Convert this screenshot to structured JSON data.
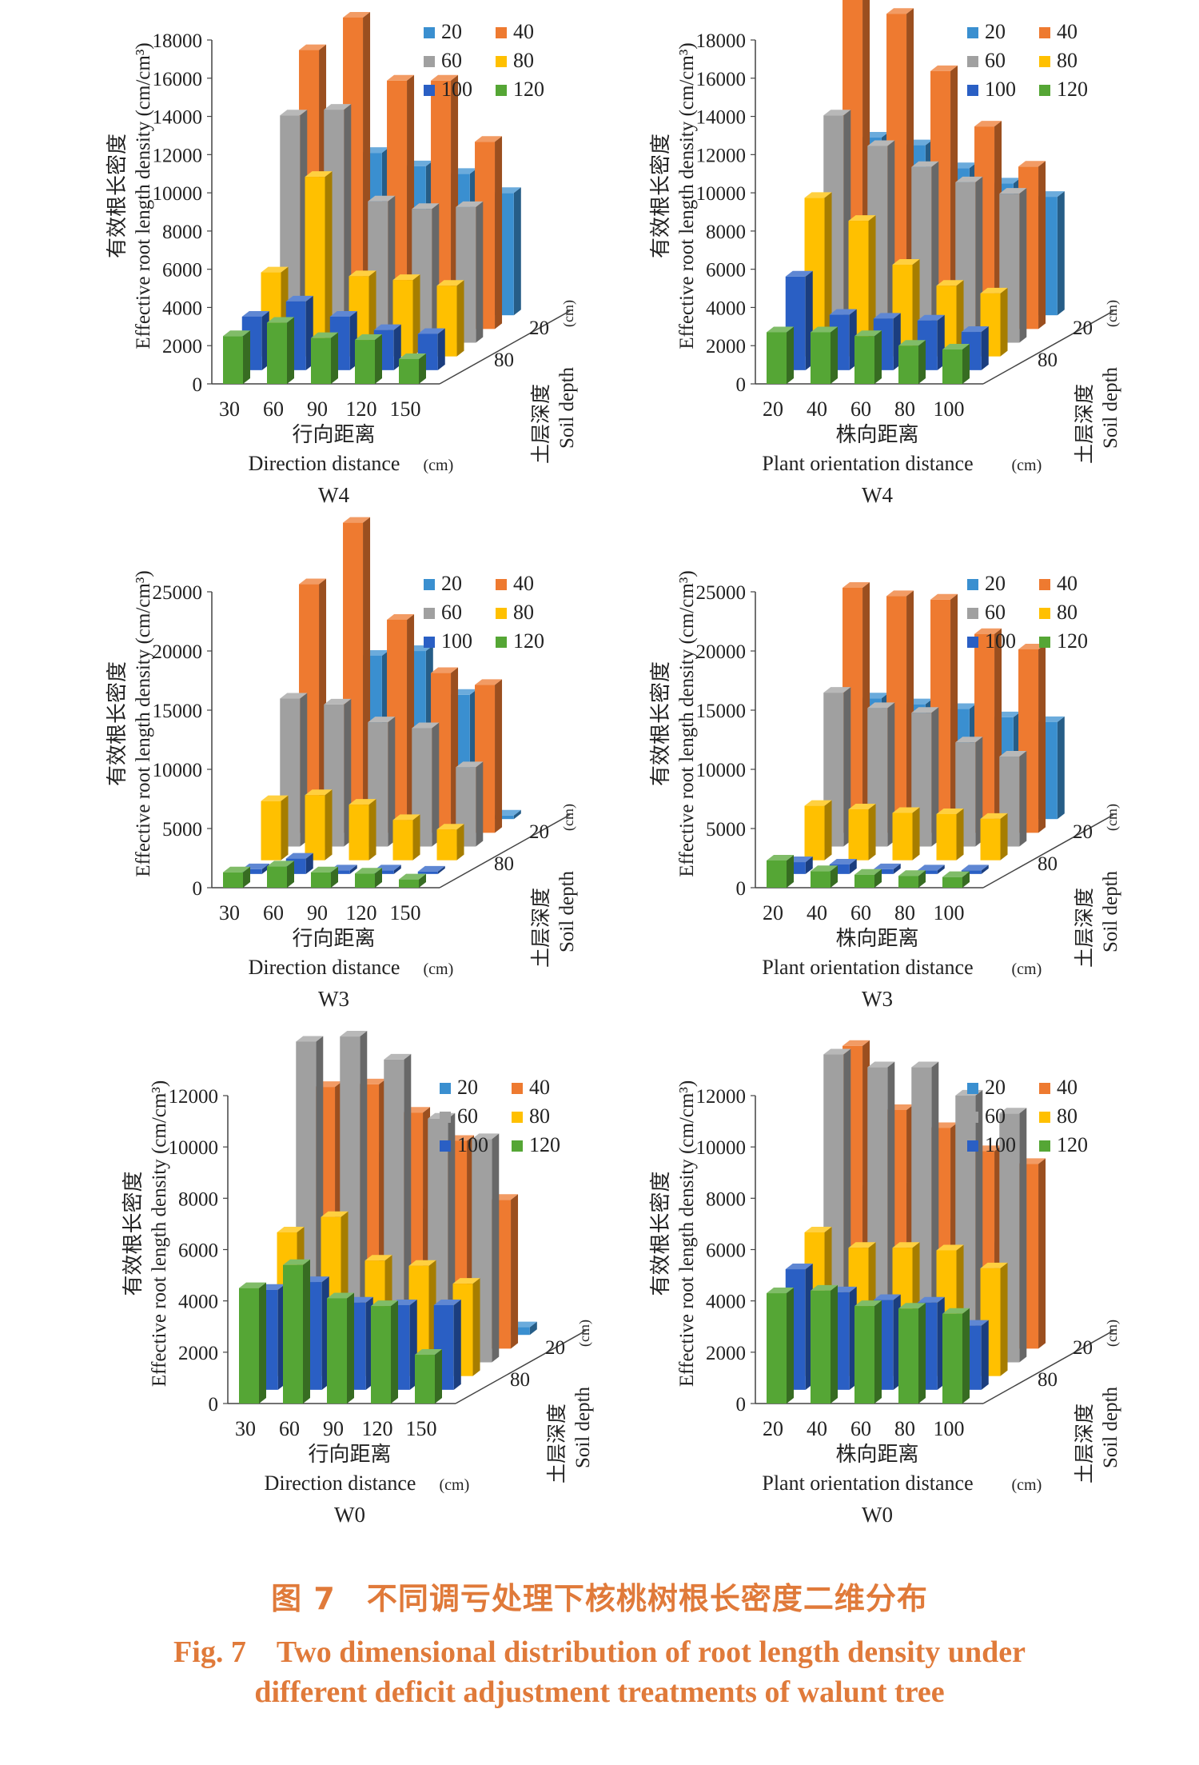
{
  "colors": {
    "s20": "#3a8fd0",
    "s40": "#ee7a30",
    "s60": "#a0a0a0",
    "s80": "#ffc000",
    "s100": "#2a5fc4",
    "s120": "#55a635",
    "caption": "#e07a3a"
  },
  "caption": {
    "cn": "图 7　不同调亏处理下核桃树根长密度二维分布",
    "en_line1": "Fig. 7　Two dimensional distribution of root length density under",
    "en_line2": "different deficit adjustment treatments of walunt tree"
  },
  "chart_data": [
    {
      "type": "bar",
      "title": "W4",
      "ylabel_cn": "有效根长密度",
      "ylabel_en": "Effective root length density (cm/cm³)",
      "xlabel_cn": "行向距离",
      "xlabel_en": "Direction distance",
      "xunit": "(cm)",
      "zlabel_cn": "土层深度",
      "zlabel_en": "Soil depth",
      "zunit": "(cm)",
      "depth_ticks": [
        "80",
        "20"
      ],
      "categories": [
        "30",
        "60",
        "90",
        "120",
        "150"
      ],
      "ylim": [
        0,
        18000
      ],
      "yticks": [
        0,
        2000,
        4000,
        6000,
        8000,
        10000,
        12000,
        14000,
        16000,
        18000
      ],
      "legend": [
        "20",
        "40",
        "60",
        "80",
        "100",
        "120"
      ],
      "series": [
        {
          "name": "120",
          "values": [
            2500,
            3200,
            2400,
            2300,
            1300
          ]
        },
        {
          "name": "100",
          "values": [
            2800,
            3600,
            2800,
            2100,
            1900
          ]
        },
        {
          "name": "80",
          "values": [
            4400,
            9400,
            4200,
            4000,
            3700
          ]
        },
        {
          "name": "60",
          "values": [
            11900,
            12200,
            7400,
            7000,
            7100
          ]
        },
        {
          "name": "40",
          "values": [
            14600,
            16300,
            13000,
            13000,
            9800
          ]
        },
        {
          "name": "20",
          "values": [
            0,
            8500,
            7800,
            7400,
            6400
          ]
        }
      ]
    },
    {
      "type": "bar",
      "title": "W4",
      "ylabel_cn": "有效根长密度",
      "ylabel_en": "Effective root length density (cm/cm³)",
      "xlabel_cn": "株向距离",
      "xlabel_en": "Plant orientation distance",
      "xunit": "(cm)",
      "zlabel_cn": "土层深度",
      "zlabel_en": "Soil depth",
      "zunit": "(cm)",
      "depth_ticks": [
        "80",
        "20"
      ],
      "categories": [
        "20",
        "40",
        "60",
        "80",
        "100"
      ],
      "ylim": [
        0,
        18000
      ],
      "yticks": [
        0,
        2000,
        4000,
        6000,
        8000,
        10000,
        12000,
        14000,
        16000,
        18000
      ],
      "legend": [
        "20",
        "40",
        "60",
        "80",
        "100",
        "120"
      ],
      "series": [
        {
          "name": "120",
          "values": [
            2700,
            2700,
            2500,
            2000,
            1800
          ]
        },
        {
          "name": "100",
          "values": [
            4900,
            2900,
            2700,
            2600,
            2000
          ]
        },
        {
          "name": "80",
          "values": [
            8300,
            7100,
            4800,
            3700,
            3300
          ]
        },
        {
          "name": "60",
          "values": [
            11900,
            10300,
            9200,
            8400,
            7800
          ]
        },
        {
          "name": "40",
          "values": [
            18500,
            16500,
            13500,
            10600,
            8500
          ]
        },
        {
          "name": "20",
          "values": [
            9300,
            8900,
            7700,
            6900,
            6200
          ]
        }
      ]
    },
    {
      "type": "bar",
      "title": "W3",
      "ylabel_cn": "有效根长密度",
      "ylabel_en": "Effective root length density (cm/cm³)",
      "xlabel_cn": "行向距离",
      "xlabel_en": "Direction distance",
      "xunit": "(cm)",
      "zlabel_cn": "土层深度",
      "zlabel_en": "Soil depth",
      "zunit": "(cm)",
      "depth_ticks": [
        "80",
        "20"
      ],
      "categories": [
        "30",
        "60",
        "90",
        "120",
        "150"
      ],
      "ylim": [
        0,
        25000
      ],
      "yticks": [
        0,
        5000,
        10000,
        15000,
        20000,
        25000
      ],
      "legend": [
        "20",
        "40",
        "60",
        "80",
        "100",
        "120"
      ],
      "series": [
        {
          "name": "120",
          "values": [
            1300,
            1800,
            1300,
            1200,
            700
          ]
        },
        {
          "name": "100",
          "values": [
            400,
            1300,
            300,
            300,
            200
          ]
        },
        {
          "name": "80",
          "values": [
            5000,
            5500,
            4700,
            3400,
            2600
          ]
        },
        {
          "name": "60",
          "values": [
            12500,
            12000,
            10500,
            10000,
            6700
          ]
        },
        {
          "name": "40",
          "values": [
            21000,
            26200,
            18000,
            13500,
            12500
          ]
        },
        {
          "name": "20",
          "values": [
            0,
            13800,
            14200,
            10500,
            300
          ]
        }
      ]
    },
    {
      "type": "bar",
      "title": "W3",
      "ylabel_cn": "有效根长密度",
      "ylabel_en": "Effective root length density (cm/cm³)",
      "xlabel_cn": "株向距离",
      "xlabel_en": "Plant orientation distance",
      "xunit": "(cm)",
      "zlabel_cn": "土层深度",
      "zlabel_en": "Soil depth",
      "zunit": "(cm)",
      "depth_ticks": [
        "80",
        "20"
      ],
      "categories": [
        "20",
        "40",
        "60",
        "80",
        "100"
      ],
      "ylim": [
        0,
        25000
      ],
      "yticks": [
        0,
        5000,
        10000,
        15000,
        20000,
        25000
      ],
      "legend": [
        "20",
        "40",
        "60",
        "80",
        "100",
        "120"
      ],
      "series": [
        {
          "name": "120",
          "values": [
            2300,
            1400,
            1100,
            1000,
            900
          ]
        },
        {
          "name": "100",
          "values": [
            1000,
            800,
            400,
            300,
            300
          ]
        },
        {
          "name": "80",
          "values": [
            4600,
            4300,
            4000,
            3900,
            3500
          ]
        },
        {
          "name": "60",
          "values": [
            13000,
            11700,
            11300,
            8800,
            7600
          ]
        },
        {
          "name": "40",
          "values": [
            20700,
            20000,
            19700,
            16800,
            15500
          ]
        },
        {
          "name": "20",
          "values": [
            10200,
            9700,
            9300,
            8600,
            8200
          ]
        }
      ]
    },
    {
      "type": "bar",
      "title": "W0",
      "ylabel_cn": "有效根长密度",
      "ylabel_en": "Effective root length density (cm/cm³)",
      "xlabel_cn": "行向距离",
      "xlabel_en": "Direction distance",
      "xunit": "(cm)",
      "zlabel_cn": "土层深度",
      "zlabel_en": "Soil depth",
      "zunit": "(cm)",
      "depth_ticks": [
        "80",
        "20"
      ],
      "categories": [
        "30",
        "60",
        "90",
        "120",
        "150"
      ],
      "ylim": [
        0,
        12000
      ],
      "yticks": [
        0,
        2000,
        4000,
        6000,
        8000,
        10000,
        12000
      ],
      "legend": [
        "20",
        "40",
        "60",
        "80",
        "100",
        "120"
      ],
      "series": [
        {
          "name": "120",
          "values": [
            4500,
            5400,
            4100,
            3800,
            1900
          ]
        },
        {
          "name": "100",
          "values": [
            3900,
            4200,
            3400,
            3300,
            3300
          ]
        },
        {
          "name": "80",
          "values": [
            5600,
            6200,
            4500,
            4300,
            3600
          ]
        },
        {
          "name": "60",
          "values": [
            12500,
            12700,
            11800,
            9500,
            8700
          ]
        },
        {
          "name": "40",
          "values": [
            10200,
            10300,
            9200,
            8100,
            5800
          ]
        },
        {
          "name": "20",
          "values": [
            0,
            7100,
            4900,
            500,
            300
          ]
        }
      ]
    },
    {
      "type": "bar",
      "title": "W0",
      "ylabel_cn": "有效根长密度",
      "ylabel_en": "Effective root length density (cm/cm³)",
      "xlabel_cn": "株向距离",
      "xlabel_en": "Plant orientation distance",
      "xunit": "(cm)",
      "zlabel_cn": "土层深度",
      "zlabel_en": "Soil depth",
      "zunit": "(cm)",
      "depth_ticks": [
        "80",
        "20"
      ],
      "categories": [
        "20",
        "40",
        "60",
        "80",
        "100"
      ],
      "ylim": [
        0,
        12000
      ],
      "yticks": [
        0,
        2000,
        4000,
        6000,
        8000,
        10000,
        12000
      ],
      "legend": [
        "20",
        "40",
        "60",
        "80",
        "100",
        "120"
      ],
      "series": [
        {
          "name": "120",
          "values": [
            4300,
            4400,
            3800,
            3700,
            3500
          ]
        },
        {
          "name": "100",
          "values": [
            4700,
            3800,
            3500,
            3400,
            2500
          ]
        },
        {
          "name": "80",
          "values": [
            5600,
            5000,
            5000,
            4900,
            4200
          ]
        },
        {
          "name": "60",
          "values": [
            12000,
            11500,
            11500,
            10400,
            9700
          ]
        },
        {
          "name": "40",
          "values": [
            11800,
            9300,
            8600,
            7700,
            7200
          ]
        },
        {
          "name": "20",
          "values": [
            5800,
            5900,
            4500,
            3600,
            0
          ]
        }
      ]
    }
  ]
}
